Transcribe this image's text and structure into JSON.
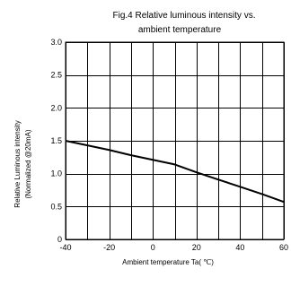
{
  "chart_data": {
    "type": "line",
    "title": "Fig.4 Relative luminous intensity vs.",
    "subtitle": "ambient temperature",
    "xlabel": "Ambient temperature Ta( ℃)",
    "ylabel": "Relative Luminous intensity",
    "ylabel_sub": "(Normalized @20mA)",
    "xlim": [
      -40,
      60
    ],
    "ylim": [
      0,
      3.0
    ],
    "grid": true,
    "xticks": [
      {
        "value": -40,
        "label": "-40"
      },
      {
        "value": -20,
        "label": "-20"
      },
      {
        "value": 0,
        "label": "0"
      },
      {
        "value": 20,
        "label": "20"
      },
      {
        "value": 40,
        "label": "40"
      },
      {
        "value": 60,
        "label": "60"
      }
    ],
    "xgrid": [
      -40,
      -30,
      -20,
      -10,
      0,
      10,
      20,
      30,
      40,
      50,
      60
    ],
    "yticks": [
      {
        "value": 0,
        "label": "0"
      },
      {
        "value": 0.5,
        "label": "0.5"
      },
      {
        "value": 1.0,
        "label": "1.0"
      },
      {
        "value": 1.5,
        "label": "1.5"
      },
      {
        "value": 2.0,
        "label": "2.0"
      },
      {
        "value": 2.5,
        "label": "2.5"
      },
      {
        "value": 3.0,
        "label": "3.0"
      }
    ],
    "series": [
      {
        "x": [
          -40,
          -30,
          -20,
          -10,
          0,
          10,
          20,
          30,
          40,
          50,
          60
        ],
        "y": [
          1.5,
          1.43,
          1.36,
          1.28,
          1.21,
          1.14,
          1.02,
          0.91,
          0.8,
          0.69,
          0.57
        ]
      }
    ]
  }
}
